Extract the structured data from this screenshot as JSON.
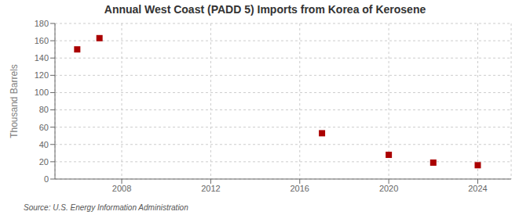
{
  "chart_data": {
    "type": "scatter",
    "title": "Annual West Coast (PADD 5) Imports from Korea of Kerosene",
    "ylabel": "Thousand Barrels",
    "annotations": [
      "Source: U.S. Energy Information Administration"
    ],
    "x": [
      2006,
      2007,
      2017,
      2020,
      2022,
      2024
    ],
    "values": [
      150,
      163,
      53,
      28,
      19,
      16
    ],
    "color": "#aa0000",
    "marker": "square",
    "xlim": [
      2005,
      2025.5
    ],
    "xticks": [
      2008,
      2012,
      2016,
      2020,
      2024
    ],
    "ylim": [
      0,
      180
    ],
    "yticks": [
      0,
      20,
      40,
      60,
      80,
      100,
      120,
      140,
      160,
      180
    ],
    "grid": true
  }
}
